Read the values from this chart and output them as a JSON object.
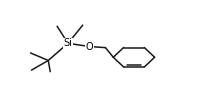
{
  "background_color": "#ffffff",
  "figsize": [
    1.97,
    1.07
  ],
  "dpi": 100,
  "line_color": "#1a1a1a",
  "line_width": 1.1,
  "text_color": "#000000",
  "Si_label": "Si",
  "O_label": "O",
  "Si_fontsize": 7.0,
  "O_fontsize": 7.0,
  "xlim": [
    0,
    1
  ],
  "ylim": [
    0,
    1
  ]
}
